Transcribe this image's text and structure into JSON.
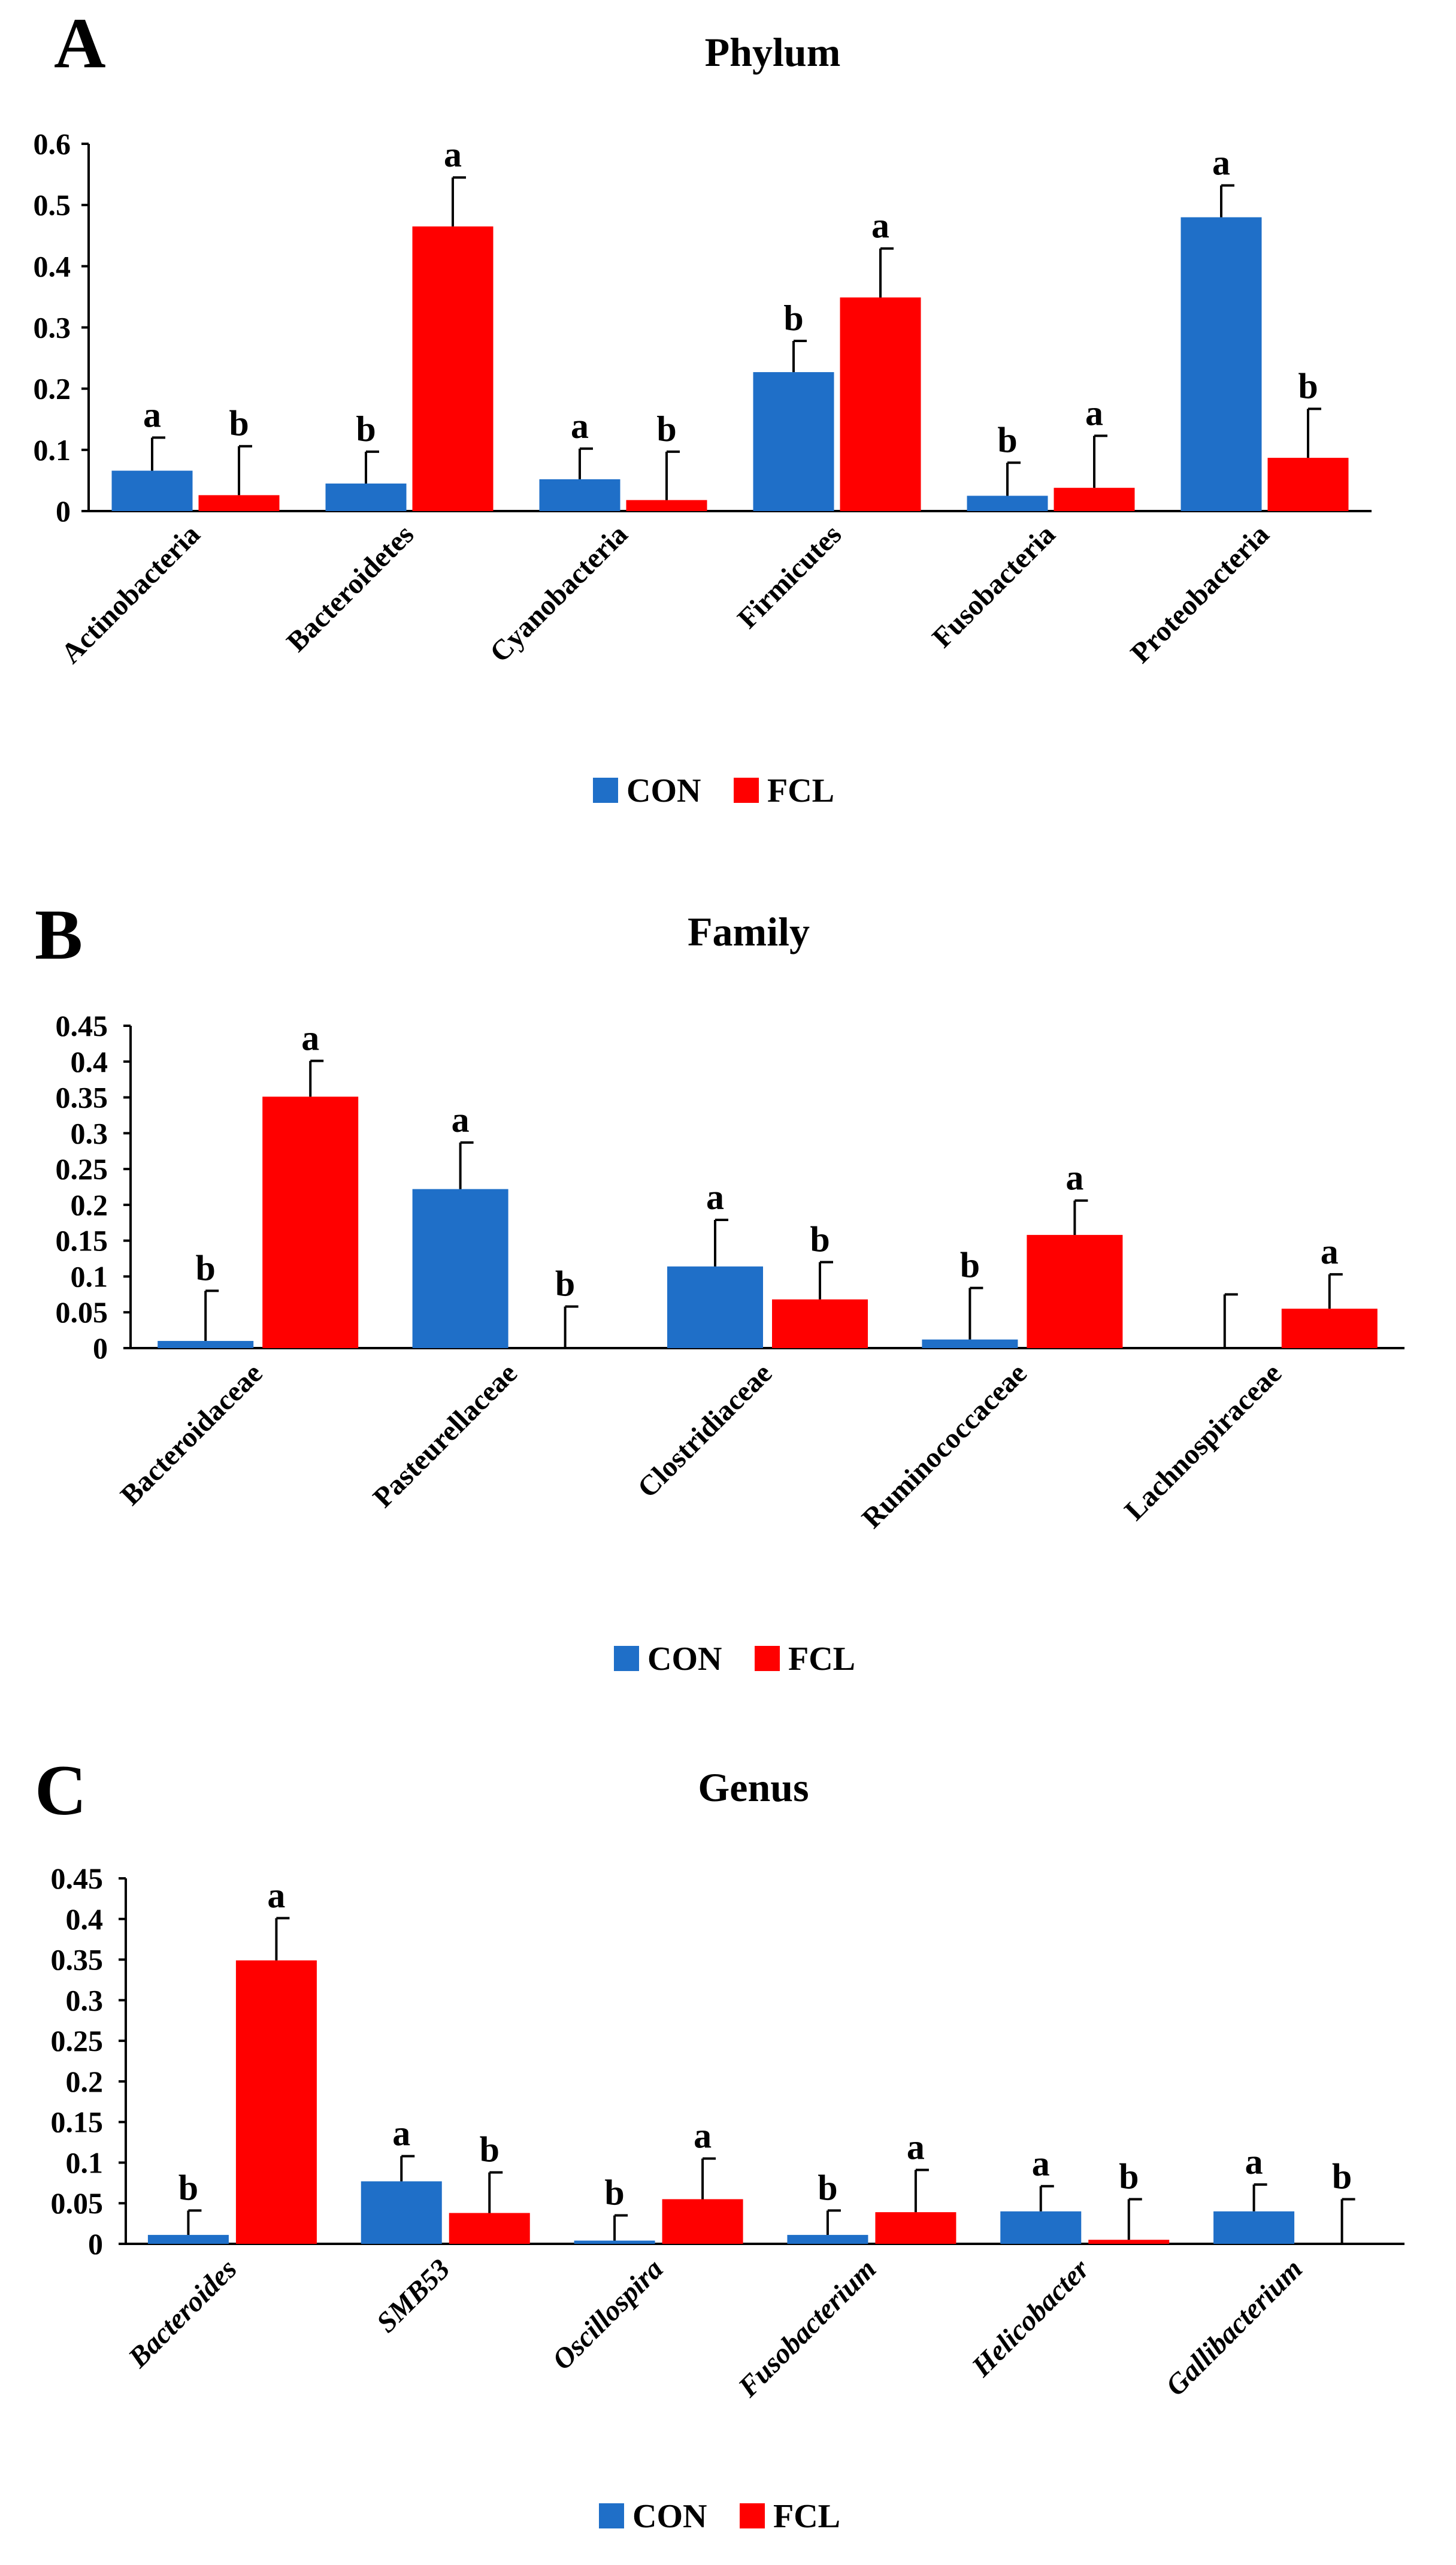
{
  "chart_data": [
    {
      "type": "bar",
      "panel": "A",
      "title": "Phylum",
      "categories": [
        "Actinobacteria",
        "Bacteroidetes",
        "Cyanobacteria",
        "Firmicutes",
        "Fusobacteria",
        "Proteobacteria"
      ],
      "category_style": "normal",
      "ylim": [
        0,
        0.6
      ],
      "yticks": [
        "0",
        "0.1",
        "0.2",
        "0.3",
        "0.4",
        "0.5",
        "0.6"
      ],
      "series": [
        {
          "name": "CON",
          "color": "#1f6fc8",
          "values": [
            0.066,
            0.045,
            0.052,
            0.227,
            0.025,
            0.48
          ],
          "errors": [
            0.054,
            0.052,
            0.05,
            0.051,
            0.054,
            0.052
          ],
          "letters": [
            "a",
            "b",
            "a",
            "b",
            "b",
            "a"
          ]
        },
        {
          "name": "FCL",
          "color": "#ff0000",
          "values": [
            0.026,
            0.465,
            0.018,
            0.349,
            0.038,
            0.087
          ],
          "errors": [
            0.08,
            0.08,
            0.079,
            0.08,
            0.085,
            0.08
          ],
          "letters": [
            "b",
            "a",
            "b",
            "a",
            "a",
            "b"
          ]
        }
      ],
      "legend": "bottom"
    },
    {
      "type": "bar",
      "panel": "B",
      "title": "Family",
      "categories": [
        "Bacteroidaceae",
        "Pasteurellaceae",
        "Clostridiaceae",
        "Ruminococcaceae",
        "Lachnospiraceae"
      ],
      "category_style": "normal",
      "ylim": [
        0,
        0.45
      ],
      "yticks": [
        "0",
        "0.05",
        "0.1",
        "0.15",
        "0.2",
        "0.25",
        "0.3",
        "0.35",
        "0.4",
        "0.45"
      ],
      "series": [
        {
          "name": "CON",
          "color": "#1f6fc8",
          "values": [
            0.01,
            0.222,
            0.114,
            0.012,
            0.0
          ],
          "errors": [
            0.07,
            0.065,
            0.065,
            0.072,
            0.075
          ],
          "letters": [
            "b",
            "a",
            "a",
            "b",
            ""
          ]
        },
        {
          "name": "FCL",
          "color": "#ff0000",
          "values": [
            0.351,
            0.0,
            0.068,
            0.158,
            0.055
          ],
          "errors": [
            0.05,
            0.058,
            0.052,
            0.048,
            0.048
          ],
          "letters": [
            "a",
            "b",
            "b",
            "a",
            "a"
          ]
        }
      ],
      "legend": "bottom"
    },
    {
      "type": "bar",
      "panel": "C",
      "title": "Genus",
      "categories": [
        "Bacteroides",
        "SMB53",
        "Oscillospira",
        "Fusobacterium",
        "Helicobacter",
        "Gallibacterium"
      ],
      "category_style": "italic",
      "ylim": [
        0,
        0.45
      ],
      "yticks": [
        "0",
        "0.05",
        "0.1",
        "0.15",
        "0.2",
        "0.25",
        "0.3",
        "0.35",
        "0.4",
        "0.45"
      ],
      "series": [
        {
          "name": "CON",
          "color": "#1f6fc8",
          "values": [
            0.011,
            0.077,
            0.004,
            0.011,
            0.04,
            0.04
          ],
          "errors": [
            0.03,
            0.031,
            0.031,
            0.03,
            0.031,
            0.033
          ],
          "letters": [
            "b",
            "a",
            "b",
            "b",
            "a",
            "a"
          ]
        },
        {
          "name": "FCL",
          "color": "#ff0000",
          "values": [
            0.349,
            0.038,
            0.055,
            0.039,
            0.005,
            0.0
          ],
          "errors": [
            0.052,
            0.05,
            0.05,
            0.052,
            0.05,
            0.055
          ],
          "letters": [
            "a",
            "b",
            "a",
            "a",
            "b",
            "b"
          ]
        }
      ],
      "legend": "bottom"
    }
  ]
}
